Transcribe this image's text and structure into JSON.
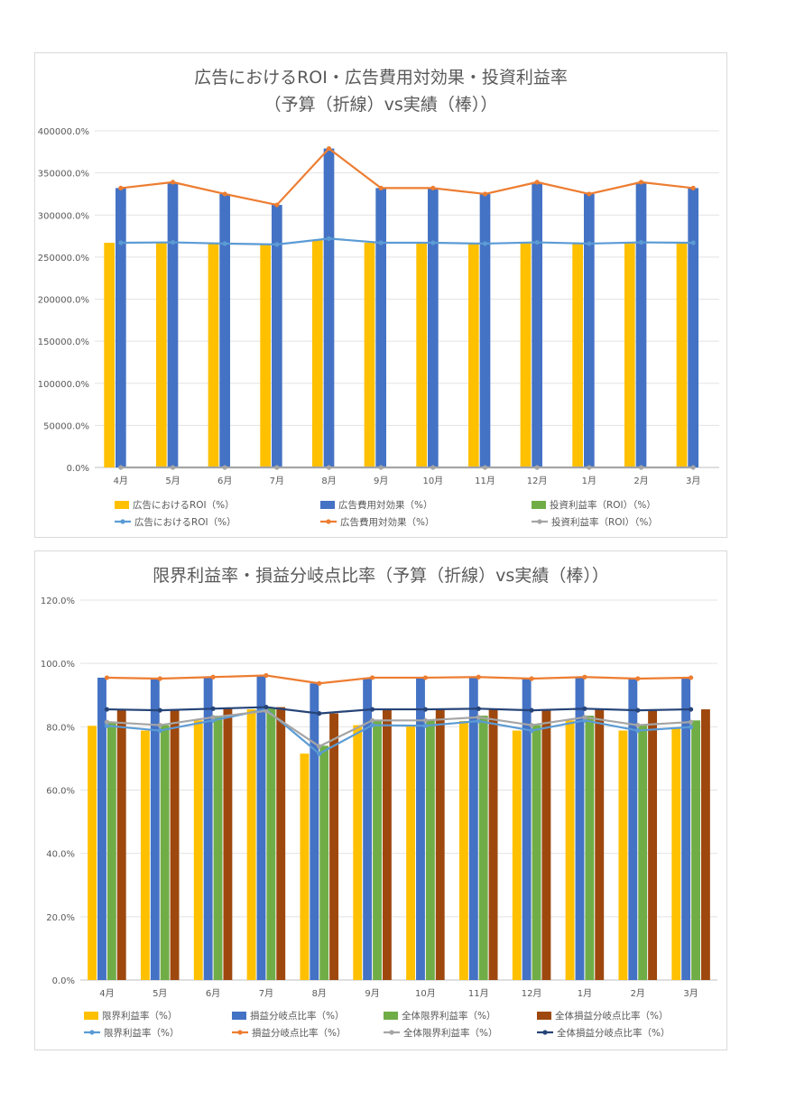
{
  "charts": [
    {
      "title_line1": "広告におけるROI・広告費用対効果・投資利益率",
      "title_line2": "（予算（折線）vs実績（棒））"
    },
    {
      "title": "限界利益率・損益分岐点比率（予算（折線）vs実績（棒））"
    }
  ],
  "chart_data": [
    {
      "type": "bar",
      "categories": [
        "4月",
        "5月",
        "6月",
        "7月",
        "8月",
        "9月",
        "10月",
        "11月",
        "12月",
        "1月",
        "2月",
        "3月"
      ],
      "ylim": [
        0,
        400000
      ],
      "yticks": [
        0,
        50000,
        100000,
        150000,
        200000,
        250000,
        300000,
        350000,
        400000
      ],
      "ytick_labels": [
        "0.0%",
        "50000.0%",
        "100000.0%",
        "150000.0%",
        "200000.0%",
        "250000.0%",
        "300000.0%",
        "350000.0%",
        "400000.0%"
      ],
      "grid": true,
      "legend_position": "bottom",
      "bar_series": [
        {
          "name": "広告におけるROI（%）",
          "color": "#FFC000",
          "values": [
            267000,
            267500,
            266000,
            265000,
            270000,
            267000,
            267000,
            266000,
            267500,
            266000,
            267500,
            267000
          ]
        },
        {
          "name": "広告費用対効果（%）",
          "color": "#4472C4",
          "values": [
            332000,
            339000,
            325000,
            312000,
            379000,
            332000,
            332000,
            325000,
            339000,
            325000,
            339000,
            332000
          ]
        },
        {
          "name": "投資利益率（ROI）（%）",
          "color": "#70AD47",
          "values": [
            0,
            0,
            0,
            0,
            0,
            0,
            0,
            0,
            0,
            0,
            0,
            0
          ]
        }
      ],
      "line_series": [
        {
          "name": "広告におけるROI（%）",
          "color": "#5B9BD5",
          "values": [
            267000,
            267500,
            266000,
            265000,
            272000,
            267000,
            267000,
            266000,
            267500,
            266000,
            267500,
            267000
          ]
        },
        {
          "name": "広告費用対効果（%）",
          "color": "#ED7D31",
          "values": [
            332000,
            339000,
            325000,
            312000,
            379000,
            332000,
            332000,
            325000,
            339000,
            325000,
            339000,
            332000
          ]
        },
        {
          "name": "投資利益率（ROI）（%）",
          "color": "#A5A5A5",
          "values": [
            0,
            0,
            0,
            0,
            0,
            0,
            0,
            0,
            0,
            0,
            0,
            0
          ]
        }
      ]
    },
    {
      "type": "bar",
      "categories": [
        "4月",
        "5月",
        "6月",
        "7月",
        "8月",
        "9月",
        "10月",
        "11月",
        "12月",
        "1月",
        "2月",
        "3月"
      ],
      "ylim": [
        0,
        120
      ],
      "yticks": [
        0,
        20,
        40,
        60,
        80,
        100,
        120
      ],
      "ytick_labels": [
        "0.0%",
        "20.0%",
        "40.0%",
        "60.0%",
        "80.0%",
        "100.0%",
        "120.0%"
      ],
      "grid": true,
      "legend_position": "bottom",
      "bar_series": [
        {
          "name": "限界利益率（%）",
          "color": "#FFC000",
          "values": [
            80.3,
            78.8,
            82.0,
            85.5,
            71.5,
            80.5,
            80.3,
            81.8,
            78.8,
            82.0,
            78.8,
            79.5
          ]
        },
        {
          "name": "損益分岐点比率（%）",
          "color": "#4472C4",
          "values": [
            95.5,
            95.2,
            95.7,
            96.2,
            93.7,
            95.5,
            95.5,
            95.7,
            95.2,
            95.7,
            95.2,
            95.5
          ]
        },
        {
          "name": "全体限界利益率（%）",
          "color": "#70AD47",
          "values": [
            81.5,
            80.5,
            83.5,
            86.0,
            74.0,
            82.0,
            82.0,
            83.5,
            80.5,
            83.5,
            80.5,
            82.0
          ]
        },
        {
          "name": "全体損益分岐点比率（%）",
          "color": "#9E480E",
          "values": [
            85.5,
            85.2,
            85.7,
            86.2,
            84.2,
            85.5,
            85.5,
            85.7,
            85.2,
            85.7,
            85.2,
            85.5
          ]
        }
      ],
      "line_series": [
        {
          "name": "限界利益率（%）",
          "color": "#5B9BD5",
          "values": [
            80.3,
            78.8,
            82.0,
            85.5,
            71.5,
            80.5,
            80.3,
            81.8,
            78.8,
            82.0,
            78.8,
            79.9
          ]
        },
        {
          "name": "損益分岐点比率（%）",
          "color": "#ED7D31",
          "values": [
            95.5,
            95.2,
            95.7,
            96.2,
            93.7,
            95.5,
            95.5,
            95.7,
            95.2,
            95.7,
            95.2,
            95.5
          ]
        },
        {
          "name": "全体限界利益率（%）",
          "color": "#A5A5A5",
          "values": [
            81.5,
            80.5,
            83.0,
            85.0,
            73.8,
            82.0,
            82.0,
            83.0,
            80.5,
            83.0,
            80.5,
            81.5
          ]
        },
        {
          "name": "全体損益分岐点比率（%）",
          "color": "#264478",
          "values": [
            85.5,
            85.2,
            85.7,
            86.2,
            84.2,
            85.5,
            85.5,
            85.7,
            85.2,
            85.7,
            85.2,
            85.5
          ]
        }
      ]
    }
  ]
}
